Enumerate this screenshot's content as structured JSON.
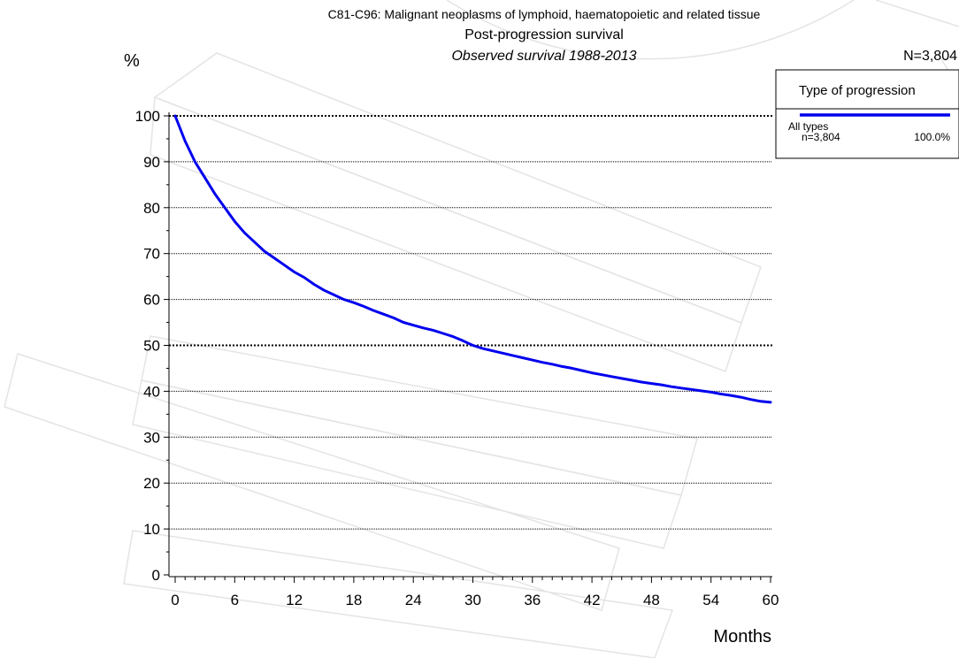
{
  "chart_data": {
    "type": "line",
    "title": "C81-C96: Malignant neoplasms of lymphoid, haematopoietic and related tissue",
    "subtitle": "Post-progression survival",
    "subtitle2": "Observed survival 1988-2013",
    "n_total": "N=3,804",
    "ylabel": "%",
    "xlabel": "Months",
    "xlim": [
      0,
      60
    ],
    "ylim": [
      0,
      100
    ],
    "x_ticks": [
      0,
      6,
      12,
      18,
      24,
      30,
      36,
      42,
      48,
      54,
      60
    ],
    "y_ticks": [
      0,
      10,
      20,
      30,
      40,
      50,
      60,
      70,
      80,
      90,
      100
    ],
    "grid": "horizontal",
    "legend": {
      "title": "Type of progression",
      "placement": "top-right",
      "entries": [
        {
          "label": "All types",
          "n": "n=3,804",
          "pct": "100.0%",
          "color": "#0000ee"
        }
      ]
    },
    "series": [
      {
        "name": "All types",
        "color": "#0000ee",
        "x": [
          0,
          1,
          2,
          3,
          4,
          5,
          6,
          7,
          8,
          9,
          10,
          11,
          12,
          13,
          14,
          15,
          16,
          17,
          18,
          19,
          20,
          21,
          22,
          23,
          24,
          25,
          26,
          27,
          28,
          29,
          30,
          31,
          32,
          33,
          34,
          35,
          36,
          37,
          38,
          39,
          40,
          41,
          42,
          43,
          44,
          45,
          46,
          47,
          48,
          49,
          50,
          51,
          52,
          53,
          54,
          55,
          56,
          57,
          58,
          59,
          60
        ],
        "y": [
          100,
          94.5,
          90,
          86.5,
          83,
          80,
          77,
          74.5,
          72.5,
          70.5,
          69,
          67.5,
          66,
          64.8,
          63.3,
          62,
          61,
          60,
          59.3,
          58.5,
          57.6,
          56.8,
          56,
          55,
          54.4,
          53.8,
          53.3,
          52.6,
          51.9,
          51,
          50,
          49.3,
          48.8,
          48.3,
          47.8,
          47.3,
          46.8,
          46.3,
          45.9,
          45.4,
          45,
          44.5,
          44,
          43.6,
          43.2,
          42.8,
          42.4,
          42,
          41.7,
          41.4,
          41,
          40.7,
          40.4,
          40.1,
          39.8,
          39.4,
          39.1,
          38.7,
          38.2,
          37.8,
          37.6
        ]
      }
    ]
  },
  "colors": {
    "series": "#0000ee",
    "grid": "#000000",
    "watermark": "#e4e4e4"
  }
}
